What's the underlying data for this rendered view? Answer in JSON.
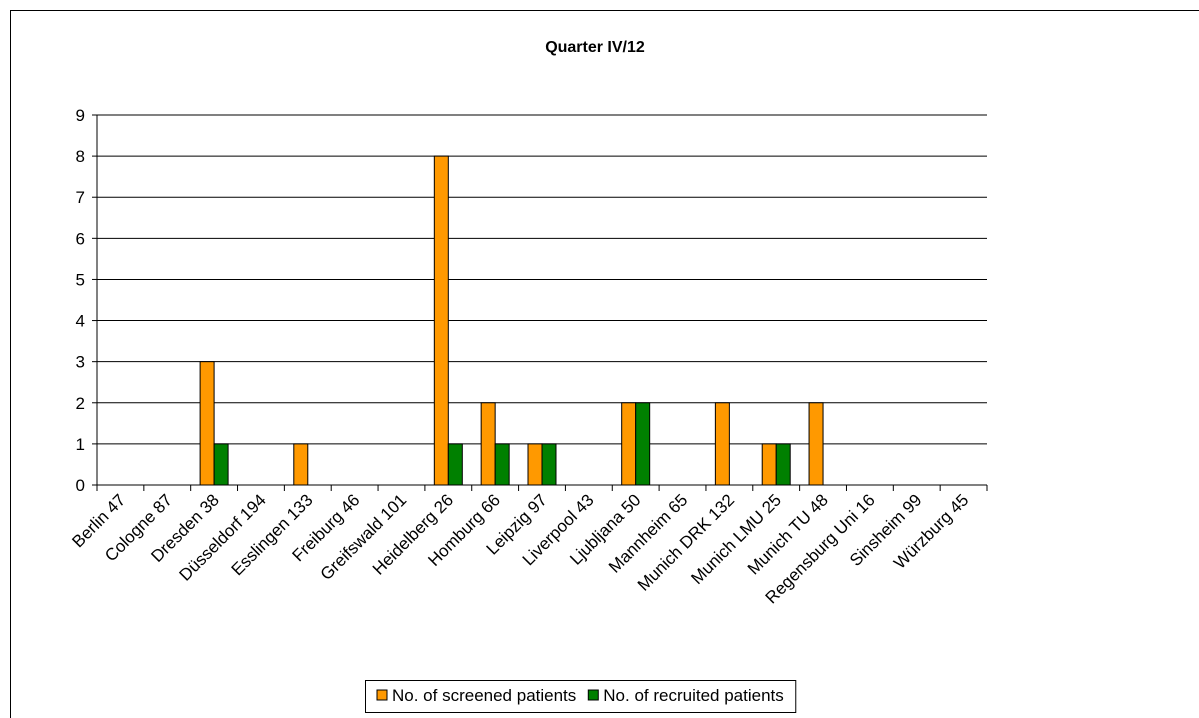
{
  "chart_data": {
    "type": "bar",
    "title": "Quarter IV/12",
    "categories": [
      "Berlin 47",
      "Cologne 87",
      "Dresden 38",
      "Düsseldorf 194",
      "Esslingen 133",
      "Freiburg 46",
      "Greifswald 101",
      "Heidelberg 26",
      "Homburg 66",
      "Leipzig 97",
      "Liverpool 43",
      "Ljubljana 50",
      "Mannheim 65",
      "Munich DRK 132",
      "Munich LMU 25",
      "Munich TU 48",
      "Regensburg Uni 16",
      "Sinsheim 99",
      "Würzburg 45"
    ],
    "series": [
      {
        "name": "No. of screened patients",
        "color": "#ff9900",
        "values": [
          0,
          0,
          3,
          0,
          1,
          0,
          0,
          8,
          2,
          1,
          0,
          2,
          0,
          2,
          1,
          2,
          0,
          0,
          0
        ]
      },
      {
        "name": "No. of recruited patients",
        "color": "#008000",
        "values": [
          0,
          0,
          1,
          0,
          0,
          0,
          0,
          1,
          1,
          1,
          0,
          2,
          0,
          0,
          1,
          0,
          0,
          0,
          0
        ]
      }
    ],
    "ylim": [
      0,
      9
    ],
    "yticks": [
      0,
      1,
      2,
      3,
      4,
      5,
      6,
      7,
      8,
      9
    ],
    "grid": true,
    "legend": "bottom"
  }
}
